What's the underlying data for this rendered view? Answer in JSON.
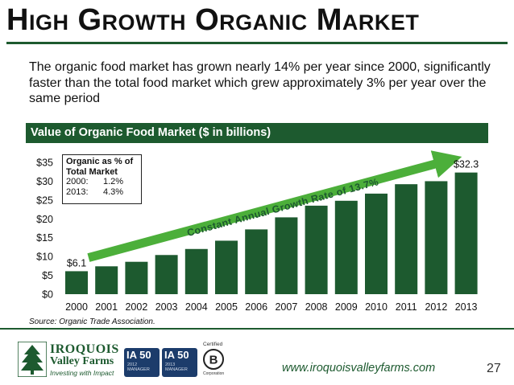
{
  "slide": {
    "title": "High Growth Organic Market",
    "intro": "The organic food market has grown nearly 14% per year since 2000, significantly faster than the total food market which grew approximately 3% per year over the same period",
    "band_title": "Value of Organic Food Market ($ in billions)",
    "source": "Source: Organic Trade Association.",
    "url": "www.iroquoisvalleyfarms.com",
    "page_number": "27"
  },
  "inset": {
    "heading_line1": "Organic as % of",
    "heading_line2": "Total Market",
    "rows": [
      {
        "year": "2000:",
        "value": "1.2%"
      },
      {
        "year": "2013:",
        "value": "4.3%"
      }
    ]
  },
  "chart_data": {
    "type": "bar",
    "categories": [
      "2000",
      "2001",
      "2002",
      "2003",
      "2004",
      "2005",
      "2006",
      "2007",
      "2008",
      "2009",
      "2010",
      "2011",
      "2012",
      "2013"
    ],
    "values": [
      6.1,
      7.4,
      8.6,
      10.4,
      12.0,
      14.2,
      17.2,
      20.4,
      23.5,
      24.8,
      26.7,
      29.2,
      30.0,
      32.3
    ],
    "ylim": [
      0,
      35
    ],
    "yticks": [
      0,
      5,
      10,
      15,
      20,
      25,
      30,
      35
    ],
    "ytick_labels": [
      "$0",
      "$5",
      "$10",
      "$15",
      "$20",
      "$25",
      "$30",
      "$35"
    ],
    "data_labels": [
      {
        "index": 0,
        "text": "$6.1"
      },
      {
        "index": 13,
        "text": "$32.3"
      }
    ],
    "annotation": "Constant Annual Growth Rate of 13.7%",
    "bar_color": "#1d5a2f",
    "arrow_color": "#4caf3a",
    "grid": false
  },
  "footer": {
    "logo_title": "IROQUOIS",
    "logo_subtitle": "Valley Farms",
    "logo_tagline": "Investing with Impact",
    "badges": [
      {
        "main": "IA 50",
        "sub1": "2012",
        "sub2": "MANAGER"
      },
      {
        "main": "IA 50",
        "sub1": "2013",
        "sub2": "MANAGER"
      }
    ],
    "bcorp_label": "Certified",
    "bcorp_sub": "Corporation"
  },
  "colors": {
    "brand_green": "#1d5a2f",
    "arrow_green": "#4caf3a",
    "badge_navy": "#1c3c6b"
  }
}
